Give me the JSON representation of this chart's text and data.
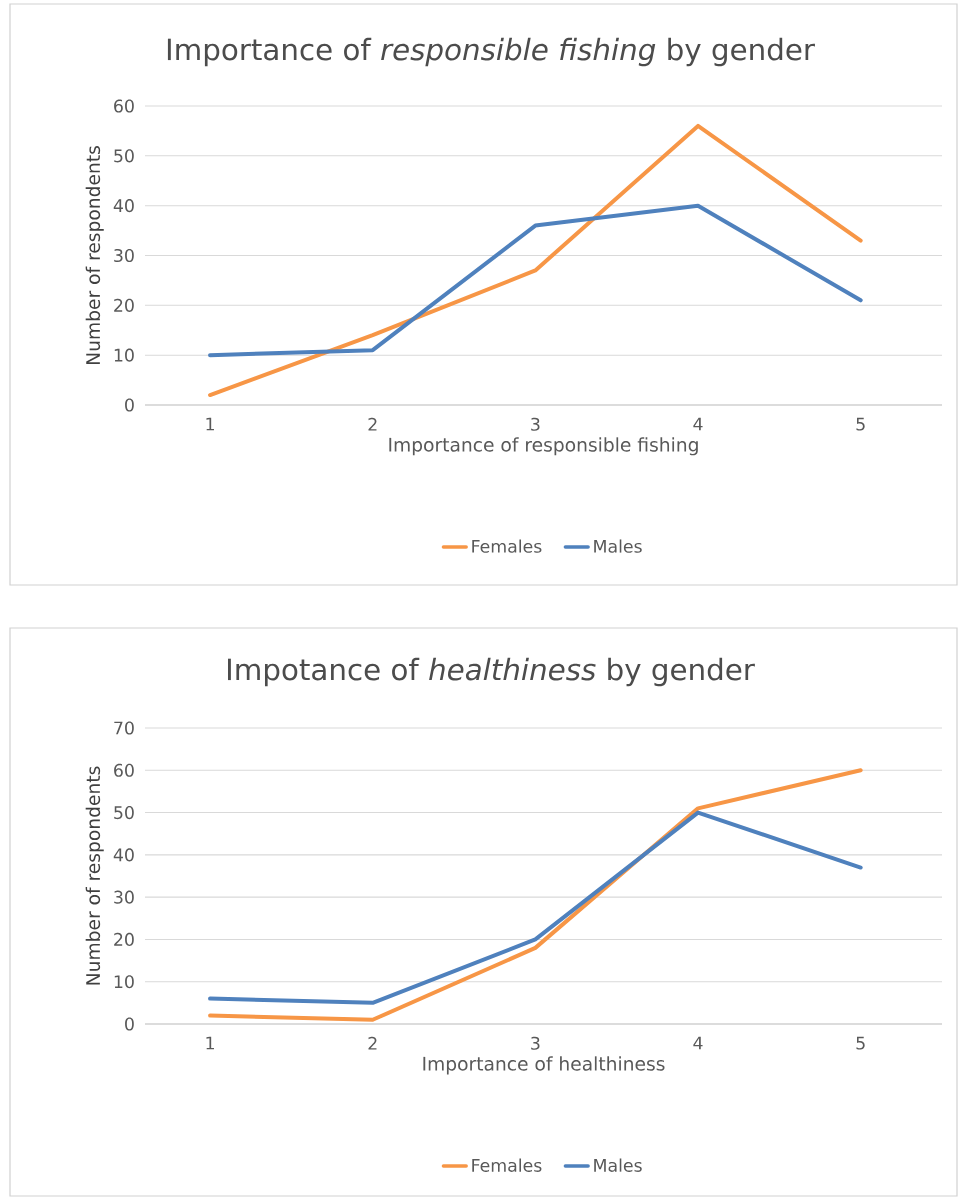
{
  "chart_data": [
    {
      "type": "line",
      "title": "Importance of *responsible fishing* by gender",
      "xlabel": "Importance of responsible fishing",
      "ylabel": "Number of respondents",
      "categories": [
        "1",
        "2",
        "3",
        "4",
        "5"
      ],
      "series": [
        {
          "name": "Females",
          "color": "#f79646",
          "values": [
            2,
            14,
            27,
            56,
            33
          ]
        },
        {
          "name": "Males",
          "color": "#4f81bd",
          "values": [
            10,
            11,
            36,
            40,
            21
          ]
        }
      ],
      "ylim": [
        0,
        60
      ],
      "yticks": [
        0,
        10,
        20,
        30,
        40,
        50,
        60
      ],
      "grid": "y",
      "legend": "bottom"
    },
    {
      "type": "line",
      "title": "Impotance of *healthiness* by gender",
      "xlabel": "Importance of healthiness",
      "ylabel": "Number of respondents",
      "categories": [
        "1",
        "2",
        "3",
        "4",
        "5"
      ],
      "series": [
        {
          "name": "Females",
          "color": "#f79646",
          "values": [
            2,
            1,
            18,
            51,
            60
          ]
        },
        {
          "name": "Males",
          "color": "#4f81bd",
          "values": [
            6,
            5,
            20,
            50,
            37
          ]
        }
      ],
      "ylim": [
        0,
        70
      ],
      "yticks": [
        0,
        10,
        20,
        30,
        40,
        50,
        60,
        70
      ],
      "grid": "y",
      "legend": "bottom"
    }
  ]
}
